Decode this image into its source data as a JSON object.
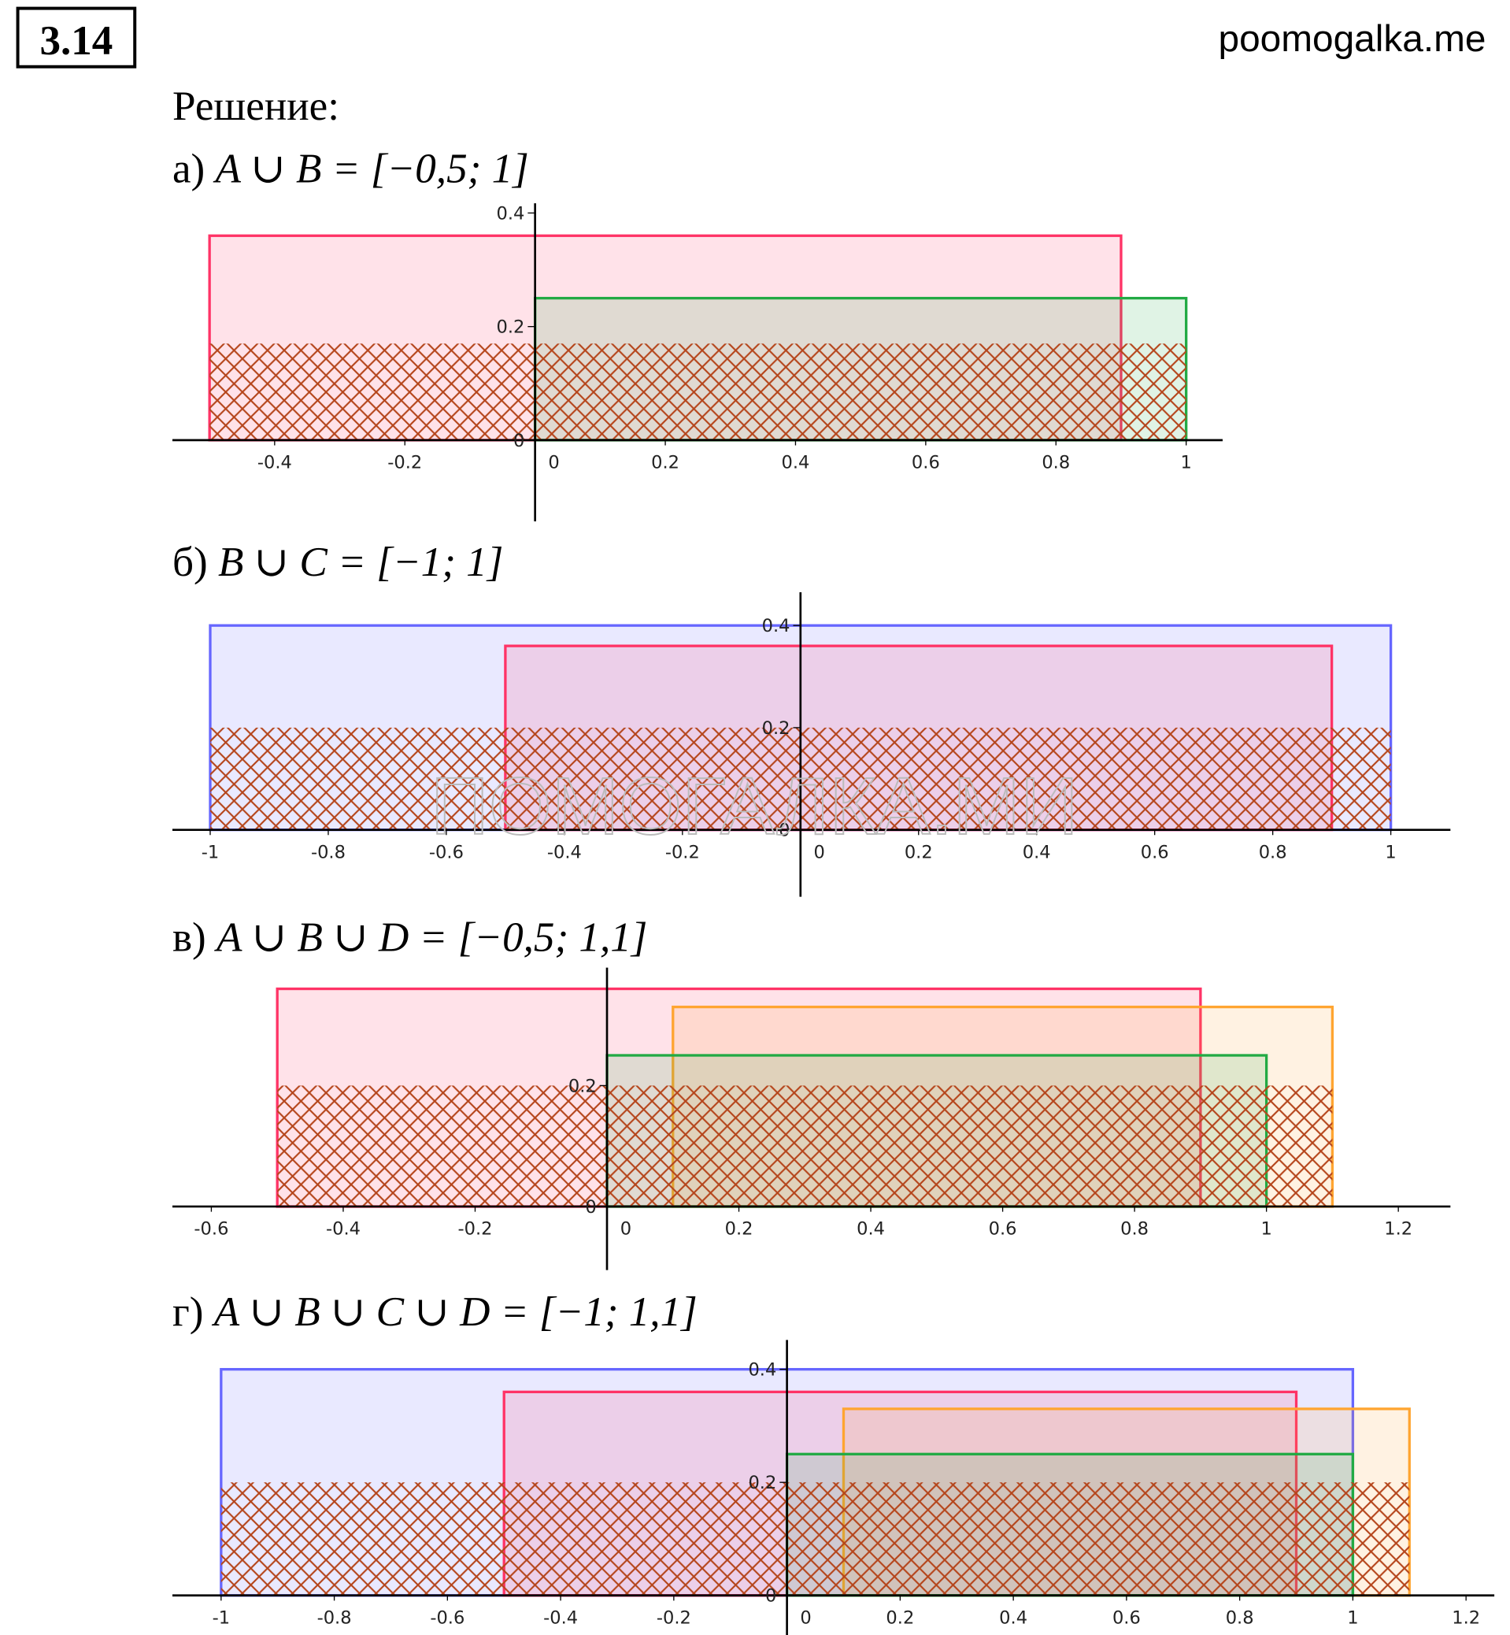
{
  "header": {
    "number": "3.14",
    "site": "poomogalka.me",
    "heading": "Решение:"
  },
  "watermark": "ПОМОГАЛКА.МИ",
  "parts": [
    {
      "label": "а)",
      "formula": "A ∪ B = [−0,5; 1]",
      "chart": {
        "xlim": [
          -0.557,
          1.056
        ],
        "ylim": [
          -0.143,
          0.417
        ],
        "xticks": [
          -0.4,
          -0.2,
          0,
          0.2,
          0.4,
          0.6,
          0.8,
          1
        ],
        "yticks": [
          0,
          0.2,
          0.4
        ],
        "intervals": [
          {
            "color": "#ff3366",
            "x": [
              -0.5,
              0.9
            ],
            "height": 0.36
          },
          {
            "color": "#22aa44",
            "x": [
              0,
              1
            ],
            "height": 0.25
          }
        ],
        "union": {
          "color": "#b5451b",
          "x": [
            -0.5,
            1
          ],
          "height": 0.17
        }
      }
    },
    {
      "label": "б)",
      "formula": "B ∪ C = [−1; 1]",
      "chart": {
        "xlim": [
          -1.064,
          1.101
        ],
        "ylim": [
          -0.131,
          0.465
        ],
        "xticks": [
          -1,
          -0.8,
          -0.6,
          -0.4,
          -0.2,
          0,
          0.2,
          0.4,
          0.6,
          0.8,
          1
        ],
        "yticks": [
          0,
          0.2,
          0.4
        ],
        "intervals": [
          {
            "color": "#6666ff",
            "x": [
              -1,
              1
            ],
            "height": 0.4
          },
          {
            "color": "#ff3366",
            "x": [
              -0.5,
              0.9
            ],
            "height": 0.36
          }
        ],
        "union": {
          "color": "#b5451b",
          "x": [
            -1,
            1
          ],
          "height": 0.2
        }
      }
    },
    {
      "label": "в)",
      "formula": "A ∪ B ∪ D = [−0,5; 1,1]",
      "chart": {
        "xlim": [
          -0.659,
          1.279
        ],
        "ylim": [
          -0.105,
          0.395
        ],
        "xticks": [
          -0.6,
          -0.4,
          -0.2,
          0,
          0.2,
          0.4,
          0.6,
          0.8,
          1,
          1.2
        ],
        "yticks": [
          0,
          0.2
        ],
        "intervals": [
          {
            "color": "#ff3366",
            "x": [
              -0.5,
              0.9
            ],
            "height": 0.36
          },
          {
            "color": "#ffa531",
            "x": [
              0.1,
              1.1
            ],
            "height": 0.33
          },
          {
            "color": "#22aa44",
            "x": [
              0,
              1
            ],
            "height": 0.25
          }
        ],
        "union": {
          "color": "#b5451b",
          "x": [
            -0.5,
            1.1
          ],
          "height": 0.2
        }
      }
    },
    {
      "label": "г)",
      "formula": "A ∪ B ∪ C ∪ D = [−1; 1,1]",
      "chart": {
        "xlim": [
          -1.086,
          1.25
        ],
        "ylim": [
          -0.07,
          0.452
        ],
        "xticks": [
          -1,
          -0.8,
          -0.6,
          -0.4,
          -0.2,
          0,
          0.2,
          0.4,
          0.6,
          0.8,
          1,
          1.2
        ],
        "yticks": [
          0,
          0.2,
          0.4
        ],
        "intervals": [
          {
            "color": "#6666ff",
            "x": [
              -1,
              1
            ],
            "height": 0.4
          },
          {
            "color": "#ff3366",
            "x": [
              -0.5,
              0.9
            ],
            "height": 0.36
          },
          {
            "color": "#ffa531",
            "x": [
              0.1,
              1.1
            ],
            "height": 0.33
          },
          {
            "color": "#22aa44",
            "x": [
              0,
              1
            ],
            "height": 0.25
          }
        ],
        "union": {
          "color": "#b5451b",
          "x": [
            -1,
            1.1
          ],
          "height": 0.2
        }
      }
    }
  ]
}
